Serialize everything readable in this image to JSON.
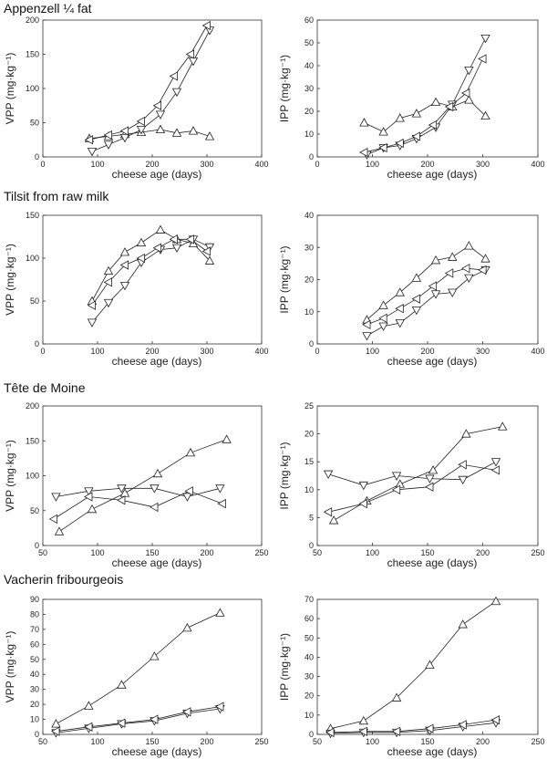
{
  "chart_data": {
    "type": "line",
    "xlabel": "cheese age (days)",
    "marker_legend": [
      "triangle-up",
      "triangle-down",
      "triangle-left"
    ],
    "sections": [
      {
        "title": "Appenzell ¼ fat",
        "charts": [
          {
            "ylabel": "VPP (mg·kg⁻¹)",
            "xlim": [
              0,
              400
            ],
            "ylim": [
              0,
              200
            ],
            "xticks": [
              0,
              100,
              200,
              300,
              400
            ],
            "yticks": [
              0,
              50,
              100,
              150,
              200
            ],
            "series": [
              {
                "marker": "triangle-up",
                "x": [
                  85,
                  120,
                  150,
                  180,
                  215,
                  245,
                  275,
                  305
                ],
                "y": [
                  27,
                  30,
                  33,
                  36,
                  40,
                  35,
                  38,
                  30
                ]
              },
              {
                "marker": "triangle-down",
                "x": [
                  90,
                  120,
                  150,
                  180,
                  215,
                  245,
                  275,
                  305
                ],
                "y": [
                  8,
                  18,
                  28,
                  40,
                  62,
                  95,
                  140,
                  185
                ]
              },
              {
                "marker": "triangle-left",
                "x": [
                  85,
                  120,
                  150,
                  180,
                  210,
                  240,
                  270,
                  300
                ],
                "y": [
                  25,
                  32,
                  38,
                  52,
                  75,
                  118,
                  150,
                  192
                ]
              }
            ]
          },
          {
            "ylabel": "IPP (mg·kg⁻¹)",
            "xlim": [
              0,
              400
            ],
            "ylim": [
              0,
              60
            ],
            "xticks": [
              0,
              100,
              200,
              300,
              400
            ],
            "yticks": [
              0,
              10,
              20,
              30,
              40,
              50,
              60
            ],
            "series": [
              {
                "marker": "triangle-up",
                "x": [
                  85,
                  120,
                  150,
                  180,
                  215,
                  245,
                  275,
                  305
                ],
                "y": [
                  15,
                  11,
                  17,
                  19,
                  24,
                  22,
                  25,
                  18
                ]
              },
              {
                "marker": "triangle-down",
                "x": [
                  90,
                  120,
                  150,
                  180,
                  215,
                  245,
                  275,
                  305
                ],
                "y": [
                  1,
                  4,
                  5,
                  8,
                  13,
                  23,
                  38,
                  52
                ]
              },
              {
                "marker": "triangle-left",
                "x": [
                  85,
                  120,
                  150,
                  180,
                  210,
                  240,
                  270,
                  300
                ],
                "y": [
                  2,
                  4,
                  6,
                  9,
                  14,
                  22,
                  28,
                  43
                ]
              }
            ]
          }
        ]
      },
      {
        "title": "Tilsit from raw milk",
        "charts": [
          {
            "ylabel": "VPP (mg·kg⁻¹)",
            "xlim": [
              0,
              400
            ],
            "ylim": [
              0,
              150
            ],
            "xticks": [
              0,
              100,
              200,
              300,
              400
            ],
            "yticks": [
              0,
              50,
              100,
              150
            ],
            "series": [
              {
                "marker": "triangle-up",
                "x": [
                  90,
                  120,
                  150,
                  180,
                  215,
                  245,
                  275,
                  305
                ],
                "y": [
                  50,
                  85,
                  107,
                  118,
                  133,
                  122,
                  117,
                  97
                ]
              },
              {
                "marker": "triangle-down",
                "x": [
                  90,
                  120,
                  150,
                  180,
                  215,
                  245,
                  275,
                  305
                ],
                "y": [
                  25,
                  48,
                  68,
                  95,
                  110,
                  112,
                  122,
                  113
                ]
              },
              {
                "marker": "triangle-left",
                "x": [
                  90,
                  120,
                  150,
                  180,
                  210,
                  240,
                  270,
                  300
                ],
                "y": [
                  45,
                  72,
                  92,
                  100,
                  112,
                  122,
                  122,
                  108
                ]
              }
            ]
          },
          {
            "ylabel": "IPP (mg·kg⁻¹)",
            "xlim": [
              0,
              400
            ],
            "ylim": [
              0,
              40
            ],
            "xticks": [
              0,
              100,
              200,
              300,
              400
            ],
            "yticks": [
              0,
              10,
              20,
              30,
              40
            ],
            "series": [
              {
                "marker": "triangle-up",
                "x": [
                  90,
                  120,
                  150,
                  180,
                  215,
                  245,
                  275,
                  305
                ],
                "y": [
                  7.5,
                  12,
                  16,
                  20.5,
                  26,
                  27,
                  30.5,
                  26.5
                ]
              },
              {
                "marker": "triangle-down",
                "x": [
                  90,
                  120,
                  150,
                  180,
                  215,
                  245,
                  275,
                  305
                ],
                "y": [
                  2.5,
                  5.5,
                  6.5,
                  10.5,
                  15.5,
                  16,
                  20.5,
                  23
                ]
              },
              {
                "marker": "triangle-left",
                "x": [
                  90,
                  120,
                  150,
                  180,
                  210,
                  240,
                  270,
                  300
                ],
                "y": [
                  6,
                  8,
                  11,
                  14,
                  18,
                  22,
                  23.5,
                  23
                ]
              }
            ]
          }
        ]
      },
      {
        "title": "Tête de Moine",
        "charts": [
          {
            "ylabel": "VPP (mg·kg⁻¹)",
            "xlim": [
              50,
              250
            ],
            "ylim": [
              0,
              200
            ],
            "xticks": [
              50,
              100,
              150,
              200,
              250
            ],
            "yticks": [
              0,
              50,
              100,
              150,
              200
            ],
            "series": [
              {
                "marker": "triangle-up",
                "x": [
                  65,
                  95,
                  125,
                  155,
                  185,
                  218
                ],
                "y": [
                  20,
                  52,
                  75,
                  103,
                  133,
                  152
                ]
              },
              {
                "marker": "triangle-down",
                "x": [
                  62,
                  92,
                  122,
                  152,
                  182,
                  212
                ],
                "y": [
                  70,
                  78,
                  82,
                  82,
                  70,
                  82
                ]
              },
              {
                "marker": "triangle-left",
                "x": [
                  60,
                  92,
                  122,
                  152,
                  184,
                  214
                ],
                "y": [
                  38,
                  70,
                  65,
                  55,
                  78,
                  60
                ]
              }
            ]
          },
          {
            "ylabel": "IPP (mg·kg⁻¹)",
            "xlim": [
              50,
              250
            ],
            "ylim": [
              0,
              25
            ],
            "xticks": [
              50,
              100,
              150,
              200,
              250
            ],
            "yticks": [
              0,
              5,
              10,
              15,
              20,
              25
            ],
            "series": [
              {
                "marker": "triangle-up",
                "x": [
                  65,
                  95,
                  125,
                  155,
                  185,
                  218
                ],
                "y": [
                  4.5,
                  8,
                  11,
                  13.5,
                  20,
                  21.3
                ]
              },
              {
                "marker": "triangle-down",
                "x": [
                  60,
                  92,
                  122,
                  152,
                  182,
                  212
                ],
                "y": [
                  12.8,
                  10.8,
                  12.5,
                  12,
                  11.8,
                  15
                ]
              },
              {
                "marker": "triangle-left",
                "x": [
                  60,
                  92,
                  122,
                  152,
                  182,
                  212
                ],
                "y": [
                  6,
                  7.5,
                  10,
                  10.5,
                  14.5,
                  13.5
                ]
              }
            ]
          }
        ]
      },
      {
        "title": "Vacherin fribourgeois",
        "charts": [
          {
            "ylabel": "VPP (mg·kg⁻¹)",
            "xlim": [
              50,
              250
            ],
            "ylim": [
              0,
              90
            ],
            "xticks": [
              50,
              100,
              150,
              200,
              250
            ],
            "yticks": [
              0,
              10,
              20,
              30,
              40,
              50,
              60,
              70,
              80,
              90
            ],
            "series": [
              {
                "marker": "triangle-up",
                "x": [
                  62,
                  92,
                  122,
                  152,
                  182,
                  212
                ],
                "y": [
                  7,
                  19,
                  33,
                  52,
                  71,
                  81
                ]
              },
              {
                "marker": "triangle-down",
                "x": [
                  62,
                  92,
                  122,
                  152,
                  182,
                  212
                ],
                "y": [
                  1,
                  4,
                  7,
                  9,
                  14,
                  17
                ]
              },
              {
                "marker": "triangle-left",
                "x": [
                  62,
                  92,
                  122,
                  152,
                  182,
                  212
                ],
                "y": [
                  2,
                  5,
                  7.5,
                  10,
                  15,
                  18.5
                ]
              }
            ]
          },
          {
            "ylabel": "IPP (mg·kg⁻¹)",
            "xlim": [
              50,
              250
            ],
            "ylim": [
              0,
              70
            ],
            "xticks": [
              50,
              100,
              150,
              200,
              250
            ],
            "yticks": [
              0,
              10,
              20,
              30,
              40,
              50,
              60,
              70
            ],
            "series": [
              {
                "marker": "triangle-up",
                "x": [
                  62,
                  92,
                  122,
                  152,
                  182,
                  212
                ],
                "y": [
                  3,
                  7,
                  19,
                  36,
                  57,
                  69
                ]
              },
              {
                "marker": "triangle-down",
                "x": [
                  62,
                  92,
                  122,
                  152,
                  182,
                  212
                ],
                "y": [
                  0.5,
                  1,
                  1,
                  2,
                  4,
                  6
                ]
              },
              {
                "marker": "triangle-left",
                "x": [
                  62,
                  92,
                  122,
                  152,
                  182,
                  212
                ],
                "y": [
                  1,
                  1.5,
                  1.5,
                  3,
                  5,
                  7.5
                ]
              }
            ]
          }
        ]
      }
    ]
  }
}
